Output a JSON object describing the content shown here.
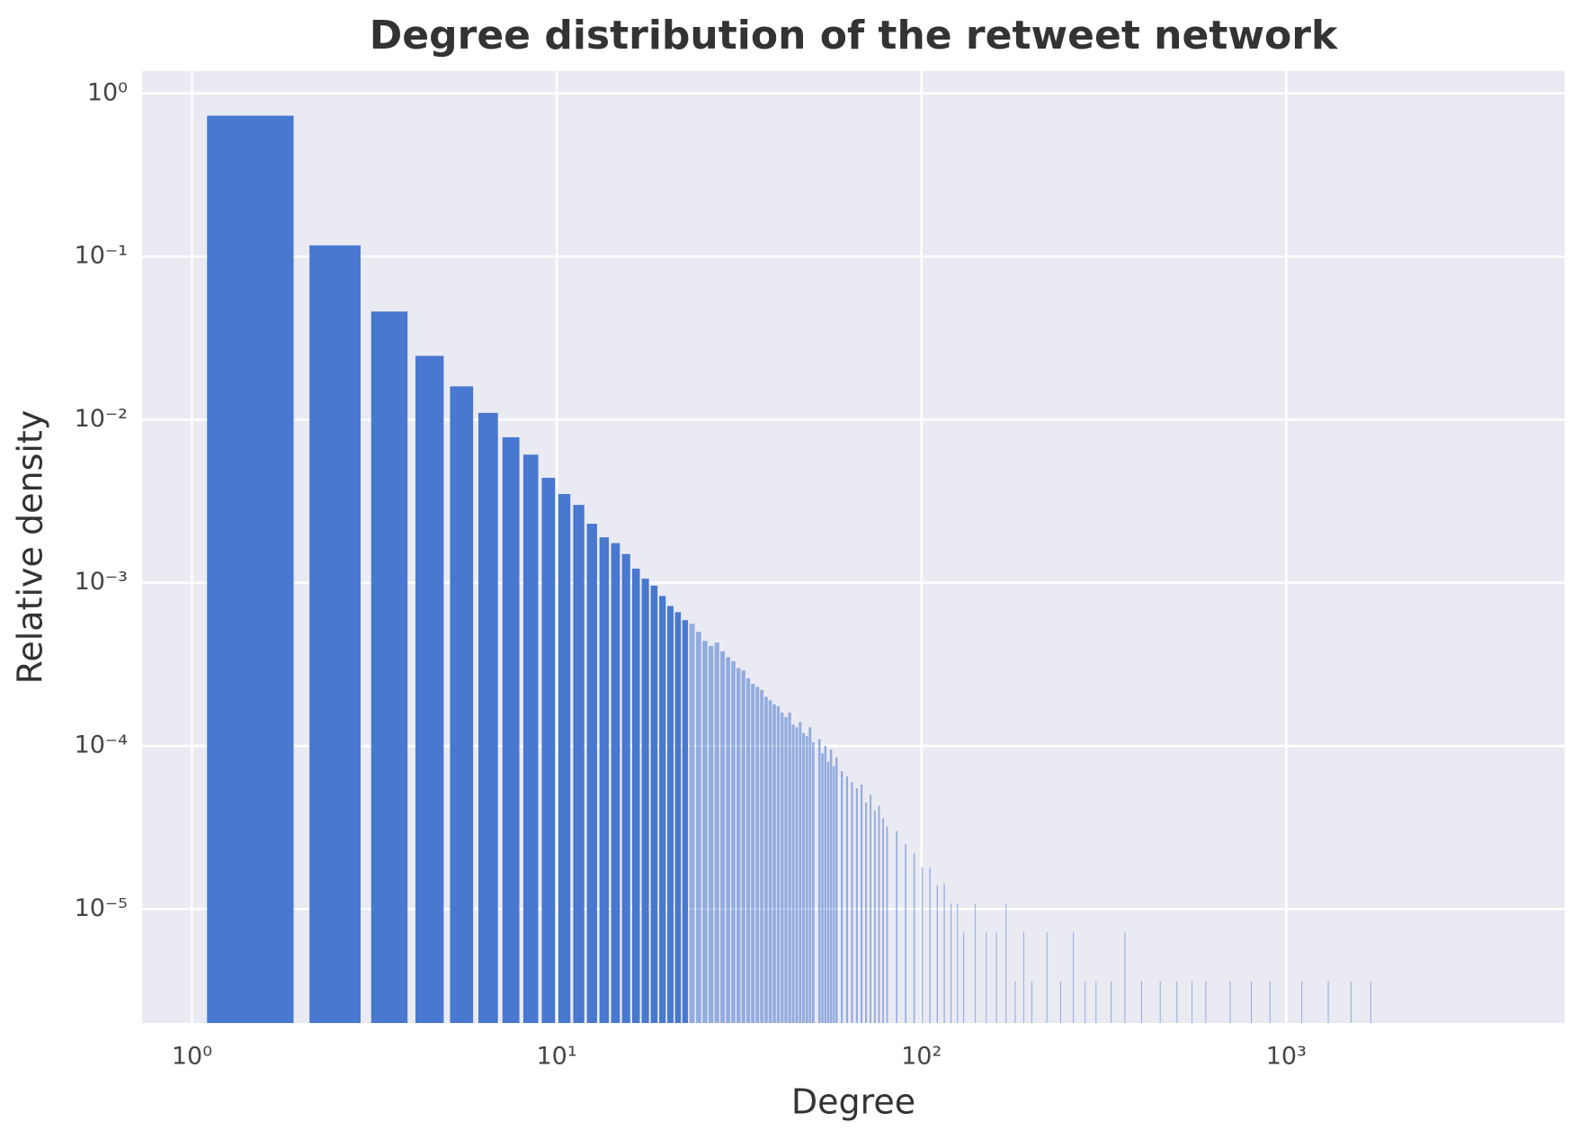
{
  "chart_data": {
    "type": "bar",
    "title": "Degree distribution of the retweet network",
    "xlabel": "Degree",
    "ylabel": "Relative density",
    "xscale": "log",
    "yscale": "log",
    "grid": true,
    "color": "#4878cf",
    "xlim": [
      0.73,
      5800
    ],
    "ylim": [
      2e-06,
      1.37
    ],
    "xticks": [
      {
        "value": 1,
        "label": "10⁰"
      },
      {
        "value": 10,
        "label": "10¹"
      },
      {
        "value": 100,
        "label": "10²"
      },
      {
        "value": 1000,
        "label": "10³"
      }
    ],
    "yticks": [
      {
        "value": 1e-05,
        "label": "10⁻⁵"
      },
      {
        "value": 0.0001,
        "label": "10⁻⁴"
      },
      {
        "value": 0.001,
        "label": "10⁻³"
      },
      {
        "value": 0.01,
        "label": "10⁻²"
      },
      {
        "value": 0.1,
        "label": "10⁻¹"
      },
      {
        "value": 1,
        "label": "10⁰"
      }
    ],
    "x": [
      1,
      2,
      3,
      4,
      5,
      6,
      7,
      8,
      9,
      10,
      11,
      12,
      13,
      14,
      15,
      16,
      17,
      18,
      19,
      20,
      21,
      22,
      23,
      24,
      25,
      26,
      27,
      28,
      29,
      30,
      31,
      32,
      33,
      34,
      35,
      36,
      37,
      38,
      39,
      40,
      41,
      42,
      43,
      44,
      45,
      46,
      47,
      48,
      49,
      50,
      52,
      53,
      54,
      55,
      56,
      57,
      58,
      60,
      62,
      64,
      66,
      68,
      70,
      72,
      74,
      76,
      78,
      80,
      85,
      90,
      95,
      100,
      105,
      110,
      115,
      120,
      125,
      130,
      140,
      150,
      160,
      170,
      180,
      190,
      200,
      220,
      240,
      260,
      280,
      300,
      330,
      360,
      400,
      450,
      500,
      550,
      600,
      700,
      800,
      900,
      1100,
      1300,
      1500,
      1700
    ],
    "values": [
      0.73,
      0.117,
      0.046,
      0.0246,
      0.016,
      0.011,
      0.0078,
      0.0061,
      0.0044,
      0.0035,
      0.003,
      0.0023,
      0.0019,
      0.00175,
      0.0015,
      0.00122,
      0.00106,
      0.00096,
      0.00083,
      0.00072,
      0.00066,
      0.00059,
      0.00056,
      0.0005,
      0.00044,
      0.00041,
      0.00043,
      0.00038,
      0.00035,
      0.00033,
      0.0003,
      0.00029,
      0.00026,
      0.00024,
      0.00023,
      0.00022,
      0.0002,
      0.00019,
      0.00018,
      0.000175,
      0.00016,
      0.00015,
      0.00016,
      0.000135,
      0.00013,
      0.00014,
      0.00012,
      0.000115,
      0.00013,
      0.000105,
      0.00011,
      9e-05,
      0.0001,
      8e-05,
      9.5e-05,
      7.5e-05,
      8.5e-05,
      7e-05,
      6.5e-05,
      6e-05,
      5.5e-05,
      5.8e-05,
      4.5e-05,
      5e-05,
      4e-05,
      4.3e-05,
      3.6e-05,
      3.2e-05,
      3e-05,
      2.5e-05,
      2.2e-05,
      1.8e-05,
      1.8e-05,
      1.4e-05,
      1.44e-05,
      1.08e-05,
      1.08e-05,
      7.2e-06,
      1.08e-05,
      7.2e-06,
      7.2e-06,
      1.08e-05,
      3.6e-06,
      7.2e-06,
      3.6e-06,
      7.2e-06,
      3.6e-06,
      7.2e-06,
      3.6e-06,
      3.6e-06,
      3.6e-06,
      7.2e-06,
      3.6e-06,
      3.6e-06,
      3.6e-06,
      3.6e-06,
      3.6e-06,
      3.6e-06,
      3.6e-06,
      3.6e-06,
      3.6e-06,
      3.6e-06,
      3.6e-06,
      3.6e-06
    ]
  }
}
